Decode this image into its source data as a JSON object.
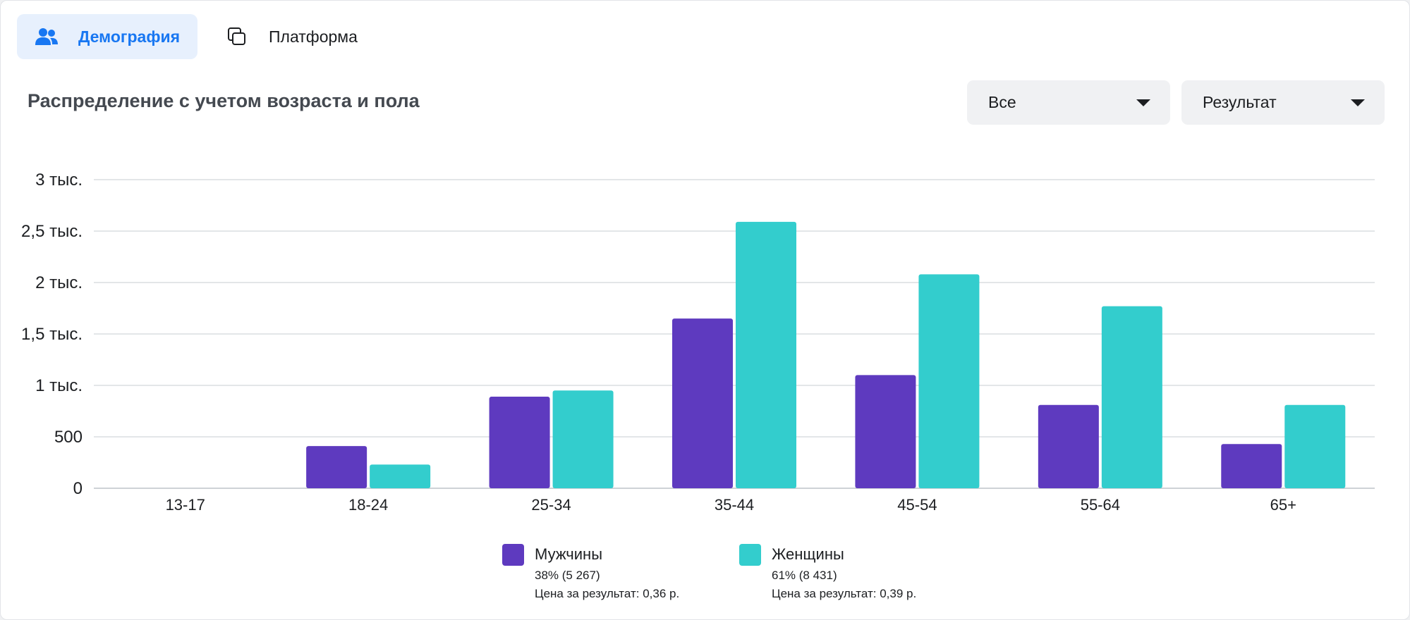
{
  "tabs": [
    {
      "label": "Демография",
      "icon": "people-icon",
      "active": true
    },
    {
      "label": "Платформа",
      "icon": "platform-icon",
      "active": false
    }
  ],
  "section": {
    "title": "Распределение с учетом возраста и пола"
  },
  "filters": {
    "audience": "Все",
    "metric": "Результат"
  },
  "colors": {
    "men": "#5e3abf",
    "women": "#33cdcd",
    "accent": "#1877f2"
  },
  "legend": [
    {
      "name": "Мужчины",
      "share": "38% (5 267)",
      "cost": "Цена за результат: 0,36 р."
    },
    {
      "name": "Женщины",
      "share": "61% (8 431)",
      "cost": "Цена за результат: 0,39 р."
    }
  ],
  "chart_data": {
    "type": "bar",
    "categories": [
      "13-17",
      "18-24",
      "25-34",
      "35-44",
      "45-54",
      "55-64",
      "65+"
    ],
    "series": [
      {
        "name": "Мужчины",
        "values": [
          0,
          410,
          890,
          1650,
          1100,
          810,
          430
        ]
      },
      {
        "name": "Женщины",
        "values": [
          0,
          230,
          950,
          2590,
          2080,
          1770,
          810
        ]
      }
    ],
    "ylim": [
      0,
      3000
    ],
    "yticks": [
      0,
      500,
      1000,
      1500,
      2000,
      2500,
      3000
    ],
    "ytick_labels": [
      "0",
      "500",
      "1 тыс.",
      "1,5 тыс.",
      "2 тыс.",
      "2,5 тыс.",
      "3 тыс."
    ],
    "grid": true,
    "legend_position": "bottom",
    "xlabel": "",
    "ylabel": ""
  }
}
